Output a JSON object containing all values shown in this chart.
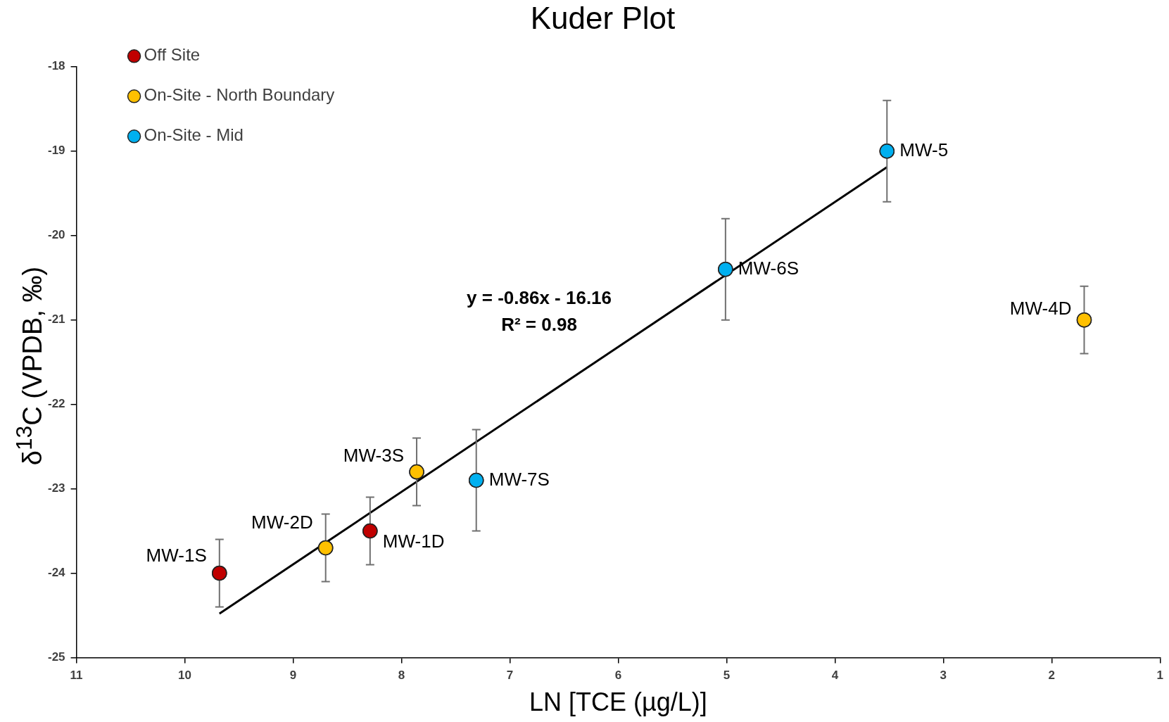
{
  "chart_data": {
    "type": "scatter",
    "title": "Kuder Plot",
    "xlabel": "LN [TCE (µg/L)]",
    "ylabel": "δ$^{13}$C (VPDB, ‰)",
    "xlim": [
      11,
      1
    ],
    "xticks": [
      11,
      10,
      9,
      8,
      7,
      6,
      5,
      4,
      3,
      2,
      1
    ],
    "ylim": [
      -25,
      -18
    ],
    "yticks": [
      -18,
      -19,
      -20,
      -21,
      -22,
      -23,
      -24,
      -25
    ],
    "grid": false,
    "legend": "top left",
    "marker": "circle",
    "series": [
      {
        "name": "Off Site",
        "color": "#c00000",
        "x": [
          9.68,
          8.29
        ],
        "values": [
          -24.0,
          -23.5
        ],
        "errors": [
          0.4,
          0.4
        ]
      },
      {
        "name": "On-Site - North Boundary",
        "color": "#ffc000",
        "x": [
          8.7,
          7.86,
          1.7
        ],
        "values": [
          -23.7,
          -22.8,
          -21.0
        ],
        "errors": [
          0.4,
          0.4,
          0.4
        ]
      },
      {
        "name": "On-Site - Mid",
        "color": "#00b0f0",
        "x": [
          7.31,
          5.01,
          3.52
        ],
        "values": [
          -22.9,
          -20.4,
          -19.0
        ],
        "errors": [
          0.6,
          0.6,
          0.6
        ]
      },
      {
        "type": "line",
        "marker": "none",
        "color": "#000000",
        "x": [
          9.68,
          3.52
        ],
        "values": [
          -24.48,
          -19.19
        ]
      }
    ],
    "annotations": [
      {
        "text": "MW-1S",
        "x": 9.68,
        "y": -24.0
      },
      {
        "text": "MW-2D",
        "x": 8.7,
        "y": -23.7
      },
      {
        "text": "MW-1D",
        "x": 8.29,
        "y": -23.5
      },
      {
        "text": "MW-3S",
        "x": 7.86,
        "y": -22.8
      },
      {
        "text": "MW-7S",
        "x": 7.31,
        "y": -22.9
      },
      {
        "text": "MW-6S",
        "x": 5.01,
        "y": -20.4
      },
      {
        "text": "MW-5",
        "x": 3.52,
        "y": -19.0
      },
      {
        "text": "MW-4D",
        "x": 1.7,
        "y": -21.0
      },
      "y = -0.86x - 16.16",
      "R² = 0.98"
    ]
  }
}
